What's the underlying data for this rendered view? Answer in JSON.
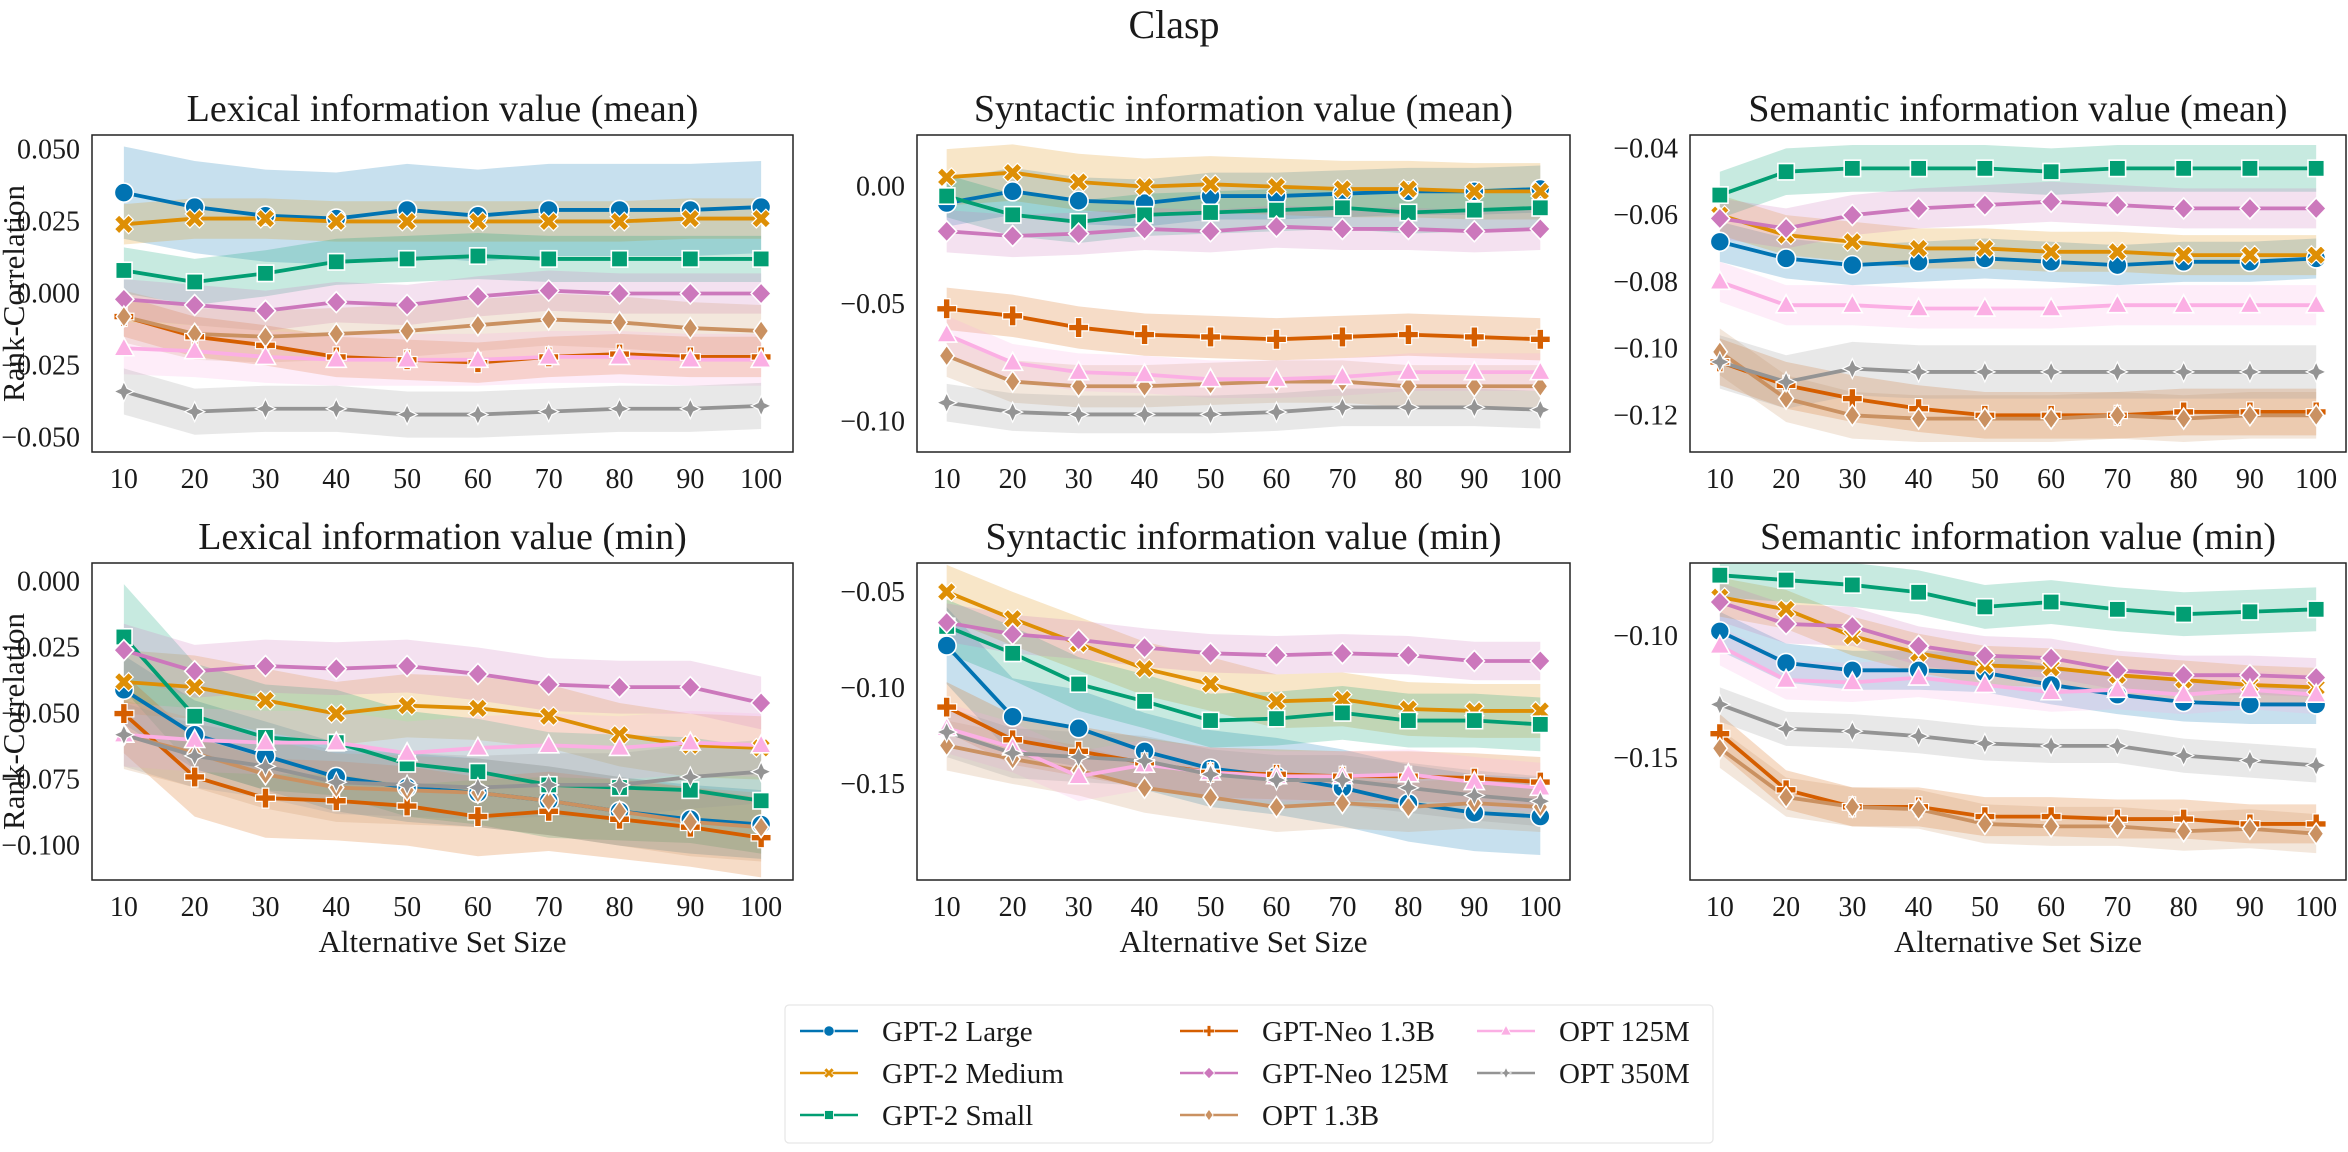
{
  "figure_title": "Clasp",
  "colors": {
    "GPT-2 Large": "#0173b2",
    "GPT-2 Medium": "#de8f05",
    "GPT-2 Small": "#029e73",
    "GPT-Neo 1.3B": "#d55e00",
    "GPT-Neo 125M": "#cc78bc",
    "OPT 1.3B": "#ca9161",
    "OPT 125M": "#fbafe4",
    "OPT 350M": "#949494"
  },
  "markers": {
    "GPT-2 Large": "circle",
    "GPT-2 Medium": "x",
    "GPT-2 Small": "square",
    "GPT-Neo 1.3B": "plus",
    "GPT-Neo 125M": "diamond",
    "OPT 1.3B": "thin-diamond",
    "OPT 125M": "triangle",
    "OPT 350M": "star"
  },
  "legend": {
    "items": [
      "GPT-2 Large",
      "GPT-2 Medium",
      "GPT-2 Small",
      "GPT-Neo 1.3B",
      "GPT-Neo 125M",
      "OPT 1.3B",
      "OPT 125M",
      "OPT 350M"
    ],
    "placement": "bottom-center",
    "columns": 3
  },
  "chart_data": [
    {
      "type": "line",
      "title": "Lexical information value (mean)",
      "xlabel": "",
      "ylabel": "Rank-Correlation",
      "x": [
        10,
        20,
        30,
        40,
        50,
        60,
        70,
        80,
        90,
        100
      ],
      "ylim": [
        -0.055,
        0.055
      ],
      "yticks": [
        -0.05,
        -0.025,
        0.0,
        0.025,
        0.05
      ],
      "ytick_labels": [
        "−0.050",
        "−0.025",
        "0.000",
        "0.025",
        "0.050"
      ],
      "series": [
        {
          "name": "GPT-2 Large",
          "values": [
            0.035,
            0.03,
            0.027,
            0.026,
            0.029,
            0.027,
            0.029,
            0.029,
            0.029,
            0.03
          ],
          "ci": 0.016
        },
        {
          "name": "GPT-2 Medium",
          "values": [
            0.024,
            0.026,
            0.026,
            0.025,
            0.025,
            0.025,
            0.025,
            0.025,
            0.026,
            0.026
          ],
          "ci": 0.007
        },
        {
          "name": "GPT-2 Small",
          "values": [
            0.008,
            0.004,
            0.007,
            0.011,
            0.012,
            0.013,
            0.012,
            0.012,
            0.012,
            0.012
          ],
          "ci": 0.008
        },
        {
          "name": "GPT-Neo 1.3B",
          "values": [
            -0.008,
            -0.015,
            -0.018,
            -0.022,
            -0.023,
            -0.024,
            -0.022,
            -0.021,
            -0.022,
            -0.022
          ],
          "ci": 0.007
        },
        {
          "name": "GPT-Neo 125M",
          "values": [
            -0.002,
            -0.004,
            -0.006,
            -0.003,
            -0.004,
            -0.001,
            0.001,
            0.0,
            0.0,
            0.0
          ],
          "ci": 0.007
        },
        {
          "name": "OPT 1.3B",
          "values": [
            -0.008,
            -0.014,
            -0.015,
            -0.014,
            -0.013,
            -0.011,
            -0.009,
            -0.01,
            -0.012,
            -0.013
          ],
          "ci": 0.009
        },
        {
          "name": "OPT 125M",
          "values": [
            -0.019,
            -0.02,
            -0.022,
            -0.023,
            -0.023,
            -0.023,
            -0.022,
            -0.022,
            -0.023,
            -0.023
          ],
          "ci": 0.009
        },
        {
          "name": "OPT 350M",
          "values": [
            -0.034,
            -0.041,
            -0.04,
            -0.04,
            -0.042,
            -0.042,
            -0.041,
            -0.04,
            -0.04,
            -0.039
          ],
          "ci": 0.008
        }
      ]
    },
    {
      "type": "line",
      "title": "Syntactic information value (mean)",
      "xlabel": "",
      "ylabel": "",
      "x": [
        10,
        20,
        30,
        40,
        50,
        60,
        70,
        80,
        90,
        100
      ],
      "ylim": [
        -0.113,
        0.022
      ],
      "yticks": [
        -0.1,
        -0.05,
        0.0
      ],
      "ytick_labels": [
        "−0.10",
        "−0.05",
        "0.00"
      ],
      "series": [
        {
          "name": "GPT-2 Large",
          "values": [
            -0.007,
            -0.002,
            -0.006,
            -0.007,
            -0.004,
            -0.004,
            -0.003,
            -0.002,
            -0.002,
            -0.001
          ],
          "ci": 0.01
        },
        {
          "name": "GPT-2 Medium",
          "values": [
            0.004,
            0.006,
            0.002,
            0.0,
            0.001,
            0.0,
            -0.001,
            -0.001,
            -0.002,
            -0.002
          ],
          "ci": 0.012
        },
        {
          "name": "GPT-2 Small",
          "values": [
            -0.004,
            -0.012,
            -0.015,
            -0.012,
            -0.011,
            -0.01,
            -0.009,
            -0.011,
            -0.01,
            -0.009
          ],
          "ci": 0.009
        },
        {
          "name": "GPT-Neo 1.3B",
          "values": [
            -0.052,
            -0.055,
            -0.06,
            -0.063,
            -0.064,
            -0.065,
            -0.064,
            -0.063,
            -0.064,
            -0.065
          ],
          "ci": 0.009
        },
        {
          "name": "GPT-Neo 125M",
          "values": [
            -0.019,
            -0.021,
            -0.02,
            -0.018,
            -0.019,
            -0.017,
            -0.018,
            -0.018,
            -0.019,
            -0.018
          ],
          "ci": 0.009
        },
        {
          "name": "OPT 1.3B",
          "values": [
            -0.072,
            -0.083,
            -0.085,
            -0.085,
            -0.084,
            -0.083,
            -0.083,
            -0.085,
            -0.085,
            -0.085
          ],
          "ci": 0.009
        },
        {
          "name": "OPT 125M",
          "values": [
            -0.063,
            -0.075,
            -0.079,
            -0.08,
            -0.082,
            -0.082,
            -0.081,
            -0.079,
            -0.079,
            -0.079
          ],
          "ci": 0.008
        },
        {
          "name": "OPT 350M",
          "values": [
            -0.092,
            -0.096,
            -0.097,
            -0.097,
            -0.097,
            -0.096,
            -0.094,
            -0.094,
            -0.094,
            -0.095
          ],
          "ci": 0.008
        }
      ]
    },
    {
      "type": "line",
      "title": "Semantic information value (mean)",
      "xlabel": "",
      "ylabel": "",
      "x": [
        10,
        20,
        30,
        40,
        50,
        60,
        70,
        80,
        90,
        100
      ],
      "ylim": [
        -0.131,
        -0.036
      ],
      "yticks": [
        -0.12,
        -0.1,
        -0.08,
        -0.06,
        -0.04
      ],
      "ytick_labels": [
        "−0.12",
        "−0.10",
        "−0.08",
        "−0.06",
        "−0.04"
      ],
      "series": [
        {
          "name": "GPT-2 Large",
          "values": [
            -0.068,
            -0.073,
            -0.075,
            -0.074,
            -0.073,
            -0.074,
            -0.075,
            -0.074,
            -0.074,
            -0.073
          ],
          "ci": 0.006
        },
        {
          "name": "GPT-2 Medium",
          "values": [
            -0.06,
            -0.066,
            -0.068,
            -0.07,
            -0.07,
            -0.071,
            -0.071,
            -0.072,
            -0.072,
            -0.072
          ],
          "ci": 0.006
        },
        {
          "name": "GPT-2 Small",
          "values": [
            -0.054,
            -0.047,
            -0.046,
            -0.046,
            -0.046,
            -0.047,
            -0.046,
            -0.046,
            -0.046,
            -0.046
          ],
          "ci": 0.007
        },
        {
          "name": "GPT-Neo 1.3B",
          "values": [
            -0.104,
            -0.111,
            -0.115,
            -0.118,
            -0.12,
            -0.12,
            -0.12,
            -0.119,
            -0.119,
            -0.119
          ],
          "ci": 0.007
        },
        {
          "name": "GPT-Neo 125M",
          "values": [
            -0.061,
            -0.064,
            -0.06,
            -0.058,
            -0.057,
            -0.056,
            -0.057,
            -0.058,
            -0.058,
            -0.058
          ],
          "ci": 0.006
        },
        {
          "name": "OPT 1.3B",
          "values": [
            -0.101,
            -0.115,
            -0.12,
            -0.121,
            -0.121,
            -0.121,
            -0.12,
            -0.121,
            -0.12,
            -0.12
          ],
          "ci": 0.007
        },
        {
          "name": "OPT 125M",
          "values": [
            -0.08,
            -0.087,
            -0.087,
            -0.088,
            -0.088,
            -0.088,
            -0.087,
            -0.087,
            -0.087,
            -0.087
          ],
          "ci": 0.006
        },
        {
          "name": "OPT 350M",
          "values": [
            -0.104,
            -0.11,
            -0.106,
            -0.107,
            -0.107,
            -0.107,
            -0.107,
            -0.107,
            -0.107,
            -0.107
          ],
          "ci": 0.008
        }
      ]
    },
    {
      "type": "line",
      "title": "Lexical information value (min)",
      "xlabel": "Alternative Set Size",
      "ylabel": "Rank-Correlation",
      "x": [
        10,
        20,
        30,
        40,
        50,
        60,
        70,
        80,
        90,
        100
      ],
      "ylim": [
        -0.113,
        0.007
      ],
      "yticks": [
        -0.1,
        -0.075,
        -0.05,
        -0.025,
        0.0
      ],
      "ytick_labels": [
        "−0.100",
        "−0.075",
        "−0.050",
        "−0.025",
        "0.000"
      ],
      "series": [
        {
          "name": "GPT-2 Large",
          "values": [
            -0.041,
            -0.058,
            -0.066,
            -0.074,
            -0.078,
            -0.08,
            -0.083,
            -0.087,
            -0.09,
            -0.092
          ],
          "ci": 0.013
        },
        {
          "name": "GPT-2 Medium",
          "values": [
            -0.038,
            -0.04,
            -0.045,
            -0.05,
            -0.047,
            -0.048,
            -0.051,
            -0.058,
            -0.062,
            -0.063
          ],
          "ci": 0.012
        },
        {
          "name": "GPT-2 Small",
          "values": [
            -0.021,
            -0.051,
            -0.059,
            -0.061,
            -0.069,
            -0.072,
            -0.077,
            -0.078,
            -0.079,
            -0.083
          ],
          "ci": 0.02
        },
        {
          "name": "GPT-Neo 1.3B",
          "values": [
            -0.05,
            -0.074,
            -0.082,
            -0.083,
            -0.085,
            -0.089,
            -0.087,
            -0.09,
            -0.093,
            -0.097
          ],
          "ci": 0.015
        },
        {
          "name": "GPT-Neo 125M",
          "values": [
            -0.026,
            -0.034,
            -0.032,
            -0.033,
            -0.032,
            -0.035,
            -0.039,
            -0.04,
            -0.04,
            -0.046
          ],
          "ci": 0.01
        },
        {
          "name": "OPT 1.3B",
          "values": [
            -0.058,
            -0.065,
            -0.073,
            -0.078,
            -0.079,
            -0.08,
            -0.083,
            -0.087,
            -0.091,
            -0.093
          ],
          "ci": 0.013
        },
        {
          "name": "OPT 125M",
          "values": [
            -0.058,
            -0.06,
            -0.061,
            -0.061,
            -0.065,
            -0.063,
            -0.062,
            -0.063,
            -0.061,
            -0.062
          ],
          "ci": 0.012
        },
        {
          "name": "OPT 350M",
          "values": [
            -0.058,
            -0.066,
            -0.07,
            -0.076,
            -0.077,
            -0.078,
            -0.077,
            -0.077,
            -0.074,
            -0.072
          ],
          "ci": 0.012
        }
      ]
    },
    {
      "type": "line",
      "title": "Syntactic information value (min)",
      "xlabel": "Alternative Set Size",
      "ylabel": "",
      "x": [
        10,
        20,
        30,
        40,
        50,
        60,
        70,
        80,
        90,
        100
      ],
      "ylim": [
        -0.2,
        -0.035
      ],
      "yticks": [
        -0.15,
        -0.1,
        -0.05
      ],
      "ytick_labels": [
        "−0.15",
        "−0.10",
        "−0.05"
      ],
      "series": [
        {
          "name": "GPT-2 Large",
          "values": [
            -0.078,
            -0.115,
            -0.121,
            -0.133,
            -0.142,
            -0.146,
            -0.152,
            -0.16,
            -0.165,
            -0.167
          ],
          "ci": 0.02
        },
        {
          "name": "GPT-2 Medium",
          "values": [
            -0.05,
            -0.064,
            -0.077,
            -0.09,
            -0.098,
            -0.107,
            -0.106,
            -0.111,
            -0.112,
            -0.112
          ],
          "ci": 0.014
        },
        {
          "name": "GPT-2 Small",
          "values": [
            -0.068,
            -0.082,
            -0.098,
            -0.107,
            -0.117,
            -0.116,
            -0.113,
            -0.117,
            -0.117,
            -0.119
          ],
          "ci": 0.014
        },
        {
          "name": "GPT-Neo 1.3B",
          "values": [
            -0.11,
            -0.127,
            -0.133,
            -0.139,
            -0.144,
            -0.145,
            -0.146,
            -0.146,
            -0.147,
            -0.149
          ],
          "ci": 0.013
        },
        {
          "name": "GPT-Neo 125M",
          "values": [
            -0.066,
            -0.072,
            -0.075,
            -0.079,
            -0.082,
            -0.083,
            -0.082,
            -0.083,
            -0.086,
            -0.086
          ],
          "ci": 0.01
        },
        {
          "name": "OPT 1.3B",
          "values": [
            -0.13,
            -0.137,
            -0.143,
            -0.152,
            -0.157,
            -0.162,
            -0.16,
            -0.162,
            -0.16,
            -0.162
          ],
          "ci": 0.013
        },
        {
          "name": "OPT 125M",
          "values": [
            -0.121,
            -0.131,
            -0.146,
            -0.14,
            -0.144,
            -0.146,
            -0.146,
            -0.145,
            -0.149,
            -0.152
          ],
          "ci": 0.013
        },
        {
          "name": "OPT 350M",
          "values": [
            -0.123,
            -0.134,
            -0.136,
            -0.138,
            -0.145,
            -0.148,
            -0.148,
            -0.152,
            -0.156,
            -0.159
          ],
          "ci": 0.013
        }
      ]
    },
    {
      "type": "line",
      "title": "Semantic information value (min)",
      "xlabel": "Alternative Set Size",
      "ylabel": "",
      "x": [
        10,
        20,
        30,
        40,
        50,
        60,
        70,
        80,
        90,
        100
      ],
      "ylim": [
        -0.2,
        -0.07
      ],
      "yticks": [
        -0.15,
        -0.1
      ],
      "ytick_labels": [
        "−0.15",
        "−0.10"
      ],
      "series": [
        {
          "name": "GPT-2 Large",
          "values": [
            -0.098,
            -0.111,
            -0.114,
            -0.114,
            -0.115,
            -0.12,
            -0.124,
            -0.127,
            -0.128,
            -0.128
          ],
          "ci": 0.008
        },
        {
          "name": "GPT-2 Medium",
          "values": [
            -0.084,
            -0.089,
            -0.1,
            -0.107,
            -0.112,
            -0.113,
            -0.116,
            -0.118,
            -0.12,
            -0.121
          ],
          "ci": 0.008
        },
        {
          "name": "GPT-2 Small",
          "values": [
            -0.075,
            -0.077,
            -0.079,
            -0.082,
            -0.088,
            -0.086,
            -0.089,
            -0.091,
            -0.09,
            -0.089
          ],
          "ci": 0.009
        },
        {
          "name": "GPT-Neo 1.3B",
          "values": [
            -0.14,
            -0.163,
            -0.17,
            -0.17,
            -0.174,
            -0.174,
            -0.175,
            -0.175,
            -0.177,
            -0.177
          ],
          "ci": 0.008
        },
        {
          "name": "GPT-Neo 125M",
          "values": [
            -0.086,
            -0.095,
            -0.096,
            -0.104,
            -0.108,
            -0.109,
            -0.114,
            -0.116,
            -0.116,
            -0.117
          ],
          "ci": 0.008
        },
        {
          "name": "OPT 1.3B",
          "values": [
            -0.146,
            -0.166,
            -0.17,
            -0.171,
            -0.177,
            -0.178,
            -0.178,
            -0.18,
            -0.179,
            -0.181
          ],
          "ci": 0.008
        },
        {
          "name": "OPT 125M",
          "values": [
            -0.104,
            -0.118,
            -0.119,
            -0.117,
            -0.12,
            -0.123,
            -0.122,
            -0.124,
            -0.122,
            -0.124
          ],
          "ci": 0.008
        },
        {
          "name": "OPT 350M",
          "values": [
            -0.128,
            -0.138,
            -0.139,
            -0.141,
            -0.144,
            -0.145,
            -0.145,
            -0.149,
            -0.151,
            -0.153
          ],
          "ci": 0.007
        }
      ]
    }
  ]
}
